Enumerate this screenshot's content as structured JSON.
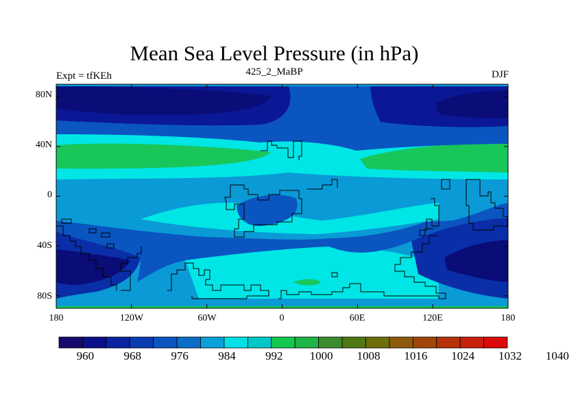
{
  "title": "Mean Sea Level Pressure (in hPa)",
  "subtitle_left": "Expt = tfKEh",
  "subtitle_center": "425_2_MaBP",
  "subtitle_right": "DJF",
  "lat_ticks": [
    "80N",
    "40N",
    "0",
    "40S",
    "80S"
  ],
  "lon_ticks": [
    "180",
    "120W",
    "60W",
    "0",
    "60E",
    "120E",
    "180"
  ],
  "colorbar": {
    "colors": [
      "#160a6e",
      "#0a0f8a",
      "#0a23a0",
      "#0a3cb4",
      "#0a55c0",
      "#0a6ec8",
      "#0aa0d8",
      "#00e0e6",
      "#00c8c8",
      "#14c850",
      "#1eb446",
      "#3c8c2d",
      "#507814",
      "#6e6e0a",
      "#8c5a0a",
      "#a0460a",
      "#b4320a",
      "#c81e0a",
      "#dc0a0a"
    ],
    "labels": [
      "960",
      "968",
      "976",
      "984",
      "992",
      "1000",
      "1008",
      "1016",
      "1024",
      "1032",
      "1040"
    ]
  },
  "field_colors": {
    "p960": "#0a0c78",
    "p968": "#0a1896",
    "p976": "#0a2ea8",
    "p984": "#0a55c0",
    "p992": "#0a9ad6",
    "p1000": "#00e6e6",
    "p1008": "#18c65a"
  }
}
